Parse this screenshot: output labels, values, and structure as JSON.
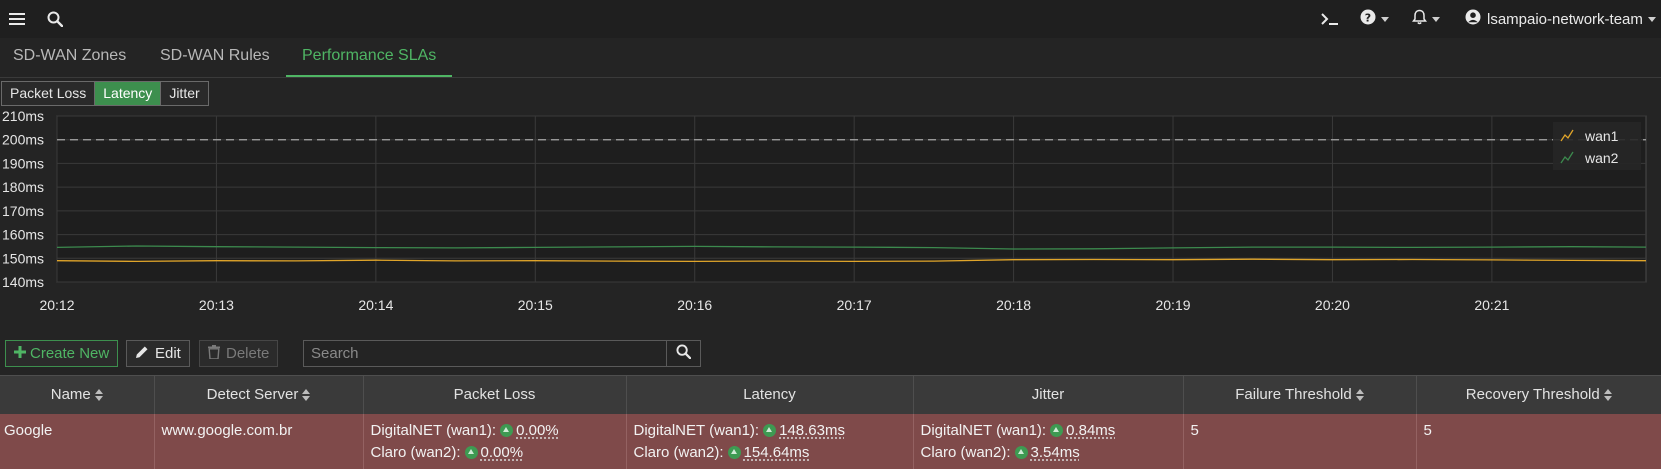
{
  "topbar": {
    "menu_icon": "hamburger-icon",
    "search_icon": "search-icon",
    "cli_icon": "terminal-icon",
    "help_icon": "question-circle-icon",
    "notifications_icon": "bell-icon",
    "user_icon": "user-circle-icon",
    "user_name": "lsampaio-network-team"
  },
  "tabs": [
    {
      "label": "SD-WAN Zones",
      "active": false
    },
    {
      "label": "SD-WAN Rules",
      "active": false
    },
    {
      "label": "Performance SLAs",
      "active": true
    }
  ],
  "metric_toggle": [
    {
      "label": "Packet Loss",
      "active": false
    },
    {
      "label": "Latency",
      "active": true
    },
    {
      "label": "Jitter",
      "active": false
    }
  ],
  "chart_data": {
    "type": "line",
    "title": "",
    "xlabel": "",
    "ylabel": "",
    "x_ticks": [
      "20:12",
      "20:13",
      "20:14",
      "20:15",
      "20:16",
      "20:17",
      "20:18",
      "20:19",
      "20:20",
      "20:21"
    ],
    "x_range": [
      "20:12",
      "20:21:58"
    ],
    "y_ticks": [
      140,
      150,
      160,
      170,
      180,
      190,
      200,
      210
    ],
    "y_tick_labels": [
      "140ms",
      "150ms",
      "160ms",
      "170ms",
      "180ms",
      "190ms",
      "200ms",
      "210ms"
    ],
    "ylim": [
      140,
      210
    ],
    "threshold": {
      "value": 200,
      "style": "dashed"
    },
    "grid": true,
    "legend_position": "top-right",
    "x": [
      "20:12",
      "20:12:30",
      "20:13",
      "20:13:30",
      "20:14",
      "20:14:30",
      "20:15",
      "20:15:30",
      "20:16",
      "20:16:30",
      "20:17",
      "20:17:30",
      "20:18",
      "20:18:30",
      "20:19",
      "20:19:30",
      "20:20",
      "20:20:30",
      "20:21",
      "20:21:30",
      "20:21:58"
    ],
    "series": [
      {
        "name": "wan1",
        "color": "#e0a52a",
        "values": [
          149.0,
          148.7,
          149.0,
          148.9,
          149.2,
          148.9,
          149.0,
          148.8,
          148.7,
          148.8,
          148.7,
          148.8,
          149.4,
          149.5,
          149.4,
          149.6,
          149.4,
          149.5,
          149.3,
          149.1,
          149.0
        ]
      },
      {
        "name": "wan2",
        "color": "#3c8a4e",
        "values": [
          154.6,
          155.2,
          154.9,
          154.7,
          154.5,
          154.4,
          154.6,
          154.8,
          155.0,
          154.8,
          154.7,
          154.5,
          153.9,
          154.0,
          154.4,
          154.7,
          154.7,
          154.6,
          154.7,
          154.9,
          154.7
        ]
      }
    ]
  },
  "toolbar": {
    "create_label": "Create New",
    "edit_label": "Edit",
    "delete_label": "Delete",
    "search_placeholder": "Search"
  },
  "table": {
    "headers": [
      "Name",
      "Detect Server",
      "Packet Loss",
      "Latency",
      "Jitter",
      "Failure Threshold",
      "Recovery Threshold"
    ],
    "rows": [
      {
        "name": "Google",
        "detect_server": "www.google.com.br",
        "packet_loss": [
          {
            "label": "DigitalNET (wan1):",
            "value": "0.00%"
          },
          {
            "label": "Claro (wan2):",
            "value": "0.00%"
          }
        ],
        "latency": [
          {
            "label": "DigitalNET (wan1):",
            "value": "148.63ms"
          },
          {
            "label": "Claro (wan2):",
            "value": "154.64ms"
          }
        ],
        "jitter": [
          {
            "label": "DigitalNET (wan1):",
            "value": "0.84ms"
          },
          {
            "label": "Claro (wan2):",
            "value": "3.54ms"
          }
        ],
        "failure_threshold": "5",
        "recovery_threshold": "5"
      }
    ]
  }
}
